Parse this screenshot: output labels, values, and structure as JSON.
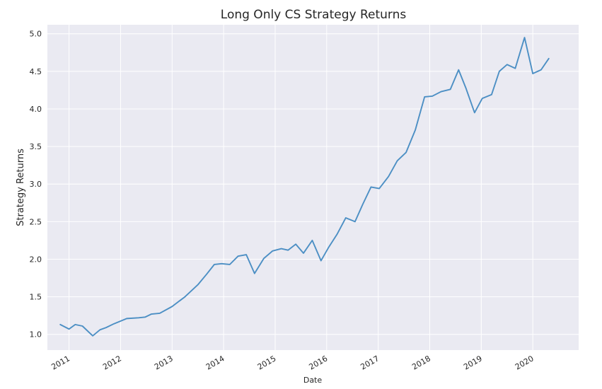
{
  "chart_data": {
    "type": "line",
    "title": "Long Only CS Strategy Returns",
    "xlabel": "Date",
    "ylabel": "Strategy Returns",
    "x_tick_labels": [
      "2011",
      "2012",
      "2013",
      "2014",
      "2015",
      "2016",
      "2017",
      "2018",
      "2019",
      "2020"
    ],
    "y_tick_labels": [
      "1.0",
      "1.5",
      "2.0",
      "2.5",
      "3.0",
      "3.5",
      "4.0",
      "4.5",
      "5.0"
    ],
    "y_ticks": [
      1.0,
      1.5,
      2.0,
      2.5,
      3.0,
      3.5,
      4.0,
      4.5,
      5.0
    ],
    "xlim": [
      2010.58,
      2020.89
    ],
    "ylim": [
      0.79,
      5.12
    ],
    "grid": true,
    "colors": {
      "background": "#eaeaf2",
      "grid": "#ffffff",
      "line": "#4c8fc4"
    },
    "series": [
      {
        "x": [
          2010.83,
          2011.0,
          2011.12,
          2011.26,
          2011.46,
          2011.6,
          2011.72,
          2011.87,
          2012.12,
          2012.35,
          2012.48,
          2012.6,
          2012.76,
          2013.0,
          2013.25,
          2013.5,
          2013.67,
          2013.82,
          2013.96,
          2014.12,
          2014.28,
          2014.44,
          2014.6,
          2014.78,
          2014.95,
          2015.12,
          2015.25,
          2015.4,
          2015.55,
          2015.72,
          2015.89,
          2016.04,
          2016.2,
          2016.37,
          2016.55,
          2016.7,
          2016.86,
          2017.02,
          2017.2,
          2017.37,
          2017.54,
          2017.72,
          2017.9,
          2018.05,
          2018.22,
          2018.4,
          2018.56,
          2018.7,
          2018.87,
          2019.02,
          2019.2,
          2019.35,
          2019.5,
          2019.66,
          2019.84,
          2020.0,
          2020.16,
          2020.31
        ],
        "y": [
          1.13,
          1.07,
          1.13,
          1.11,
          0.98,
          1.06,
          1.09,
          1.14,
          1.21,
          1.22,
          1.23,
          1.27,
          1.28,
          1.37,
          1.5,
          1.66,
          1.8,
          1.93,
          1.94,
          1.93,
          2.04,
          2.06,
          1.81,
          2.01,
          2.11,
          2.14,
          2.12,
          2.2,
          2.08,
          2.25,
          1.98,
          2.16,
          2.33,
          2.55,
          2.5,
          2.73,
          2.96,
          2.94,
          3.1,
          3.31,
          3.42,
          3.72,
          4.16,
          4.17,
          4.23,
          4.26,
          4.52,
          4.28,
          3.95,
          4.14,
          4.19,
          4.5,
          4.59,
          4.54,
          4.95,
          4.47,
          4.52,
          4.67
        ]
      }
    ]
  }
}
